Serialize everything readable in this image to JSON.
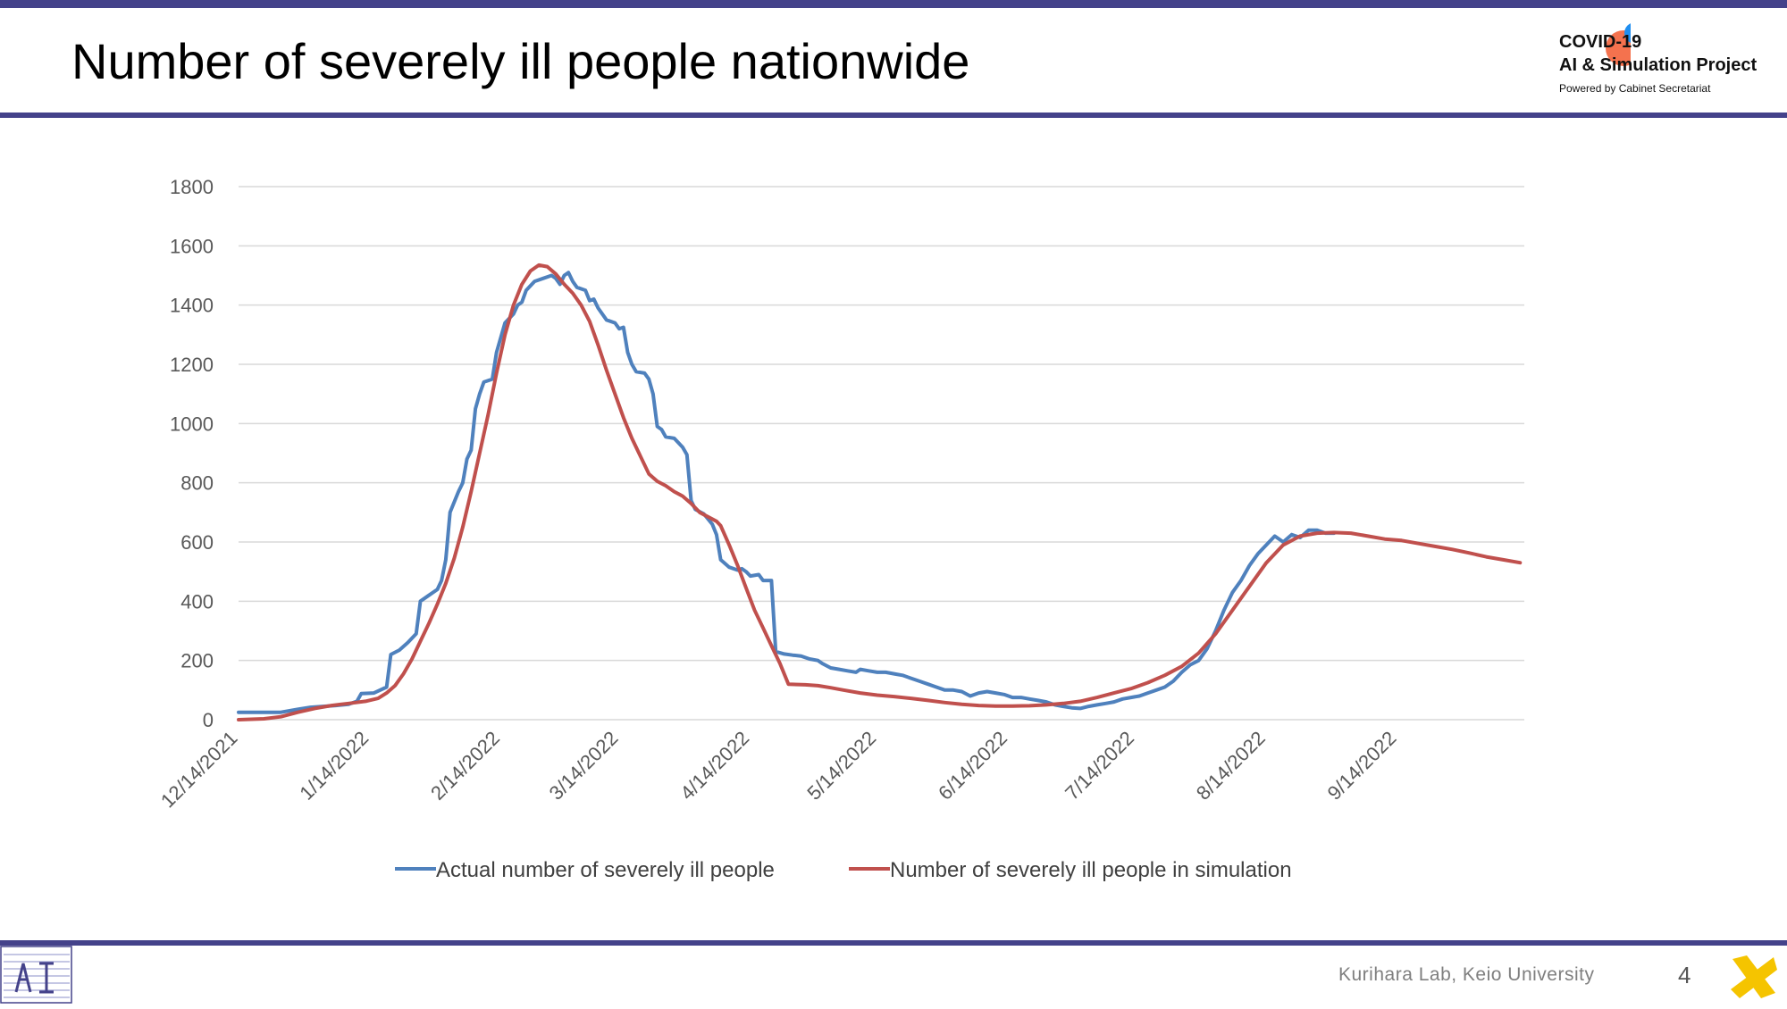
{
  "slide": {
    "title": "Number of severely ill people nationwide",
    "footer": "Kurihara Lab, Keio University",
    "page_number": "4"
  },
  "logo": {
    "line1": "COVID-19",
    "line2": "AI & Simulation Project",
    "line3": "Powered by Cabinet Secretariat",
    "colors": {
      "orange": "#f4724e",
      "blue": "#1f8ef0"
    }
  },
  "theme": {
    "accent": "#44428a",
    "actual_color": "#4f81bd",
    "sim_color": "#c0504d"
  },
  "chart_data": {
    "type": "line",
    "title": "",
    "xlabel": "",
    "ylabel": "",
    "ylim": [
      0,
      1800
    ],
    "yticks": [
      0,
      200,
      400,
      600,
      800,
      1000,
      1200,
      1400,
      1600,
      1800
    ],
    "x_start": "2021-12-14",
    "x_end": "2022-10-14",
    "xtick_labels": [
      "12/14/2021",
      "1/14/2022",
      "2/14/2022",
      "3/14/2022",
      "4/14/2022",
      "5/14/2022",
      "6/14/2022",
      "7/14/2022",
      "8/14/2022",
      "9/14/2022"
    ],
    "xtick_dates": [
      "2021-12-14",
      "2022-01-14",
      "2022-02-14",
      "2022-03-14",
      "2022-04-14",
      "2022-05-14",
      "2022-06-14",
      "2022-07-14",
      "2022-08-14",
      "2022-09-14"
    ],
    "grid": true,
    "legend_position": "bottom",
    "series": [
      {
        "name": "Actual number of severely ill people",
        "color": "#4f81bd",
        "points": [
          [
            "2021-12-14",
            25
          ],
          [
            "2021-12-24",
            25
          ],
          [
            "2021-12-28",
            35
          ],
          [
            "2021-12-31",
            42
          ],
          [
            "2022-01-03",
            45
          ],
          [
            "2022-01-06",
            48
          ],
          [
            "2022-01-09",
            52
          ],
          [
            "2022-01-11",
            62
          ],
          [
            "2022-01-12",
            88
          ],
          [
            "2022-01-15",
            90
          ],
          [
            "2022-01-18",
            110
          ],
          [
            "2022-01-19",
            220
          ],
          [
            "2022-01-21",
            235
          ],
          [
            "2022-01-23",
            260
          ],
          [
            "2022-01-25",
            290
          ],
          [
            "2022-01-26",
            400
          ],
          [
            "2022-01-28",
            420
          ],
          [
            "2022-01-30",
            440
          ],
          [
            "2022-01-31",
            470
          ],
          [
            "2022-02-01",
            540
          ],
          [
            "2022-02-02",
            700
          ],
          [
            "2022-02-04",
            770
          ],
          [
            "2022-02-05",
            800
          ],
          [
            "2022-02-06",
            880
          ],
          [
            "2022-02-07",
            910
          ],
          [
            "2022-02-08",
            1050
          ],
          [
            "2022-02-09",
            1100
          ],
          [
            "2022-02-10",
            1140
          ],
          [
            "2022-02-12",
            1150
          ],
          [
            "2022-02-13",
            1240
          ],
          [
            "2022-02-15",
            1340
          ],
          [
            "2022-02-17",
            1370
          ],
          [
            "2022-02-18",
            1400
          ],
          [
            "2022-02-19",
            1410
          ],
          [
            "2022-02-20",
            1450
          ],
          [
            "2022-02-22",
            1480
          ],
          [
            "2022-02-24",
            1490
          ],
          [
            "2022-02-26",
            1500
          ],
          [
            "2022-02-27",
            1490
          ],
          [
            "2022-02-28",
            1470
          ],
          [
            "2022-03-01",
            1500
          ],
          [
            "2022-03-02",
            1510
          ],
          [
            "2022-03-03",
            1480
          ],
          [
            "2022-03-04",
            1460
          ],
          [
            "2022-03-06",
            1450
          ],
          [
            "2022-03-07",
            1415
          ],
          [
            "2022-03-08",
            1420
          ],
          [
            "2022-03-09",
            1390
          ],
          [
            "2022-03-11",
            1350
          ],
          [
            "2022-03-13",
            1340
          ],
          [
            "2022-03-14",
            1320
          ],
          [
            "2022-03-15",
            1325
          ],
          [
            "2022-03-16",
            1240
          ],
          [
            "2022-03-17",
            1200
          ],
          [
            "2022-03-18",
            1175
          ],
          [
            "2022-03-20",
            1170
          ],
          [
            "2022-03-21",
            1150
          ],
          [
            "2022-03-22",
            1100
          ],
          [
            "2022-03-23",
            990
          ],
          [
            "2022-03-24",
            980
          ],
          [
            "2022-03-25",
            955
          ],
          [
            "2022-03-27",
            950
          ],
          [
            "2022-03-29",
            920
          ],
          [
            "2022-03-30",
            895
          ],
          [
            "2022-03-31",
            740
          ],
          [
            "2022-04-01",
            710
          ],
          [
            "2022-04-03",
            695
          ],
          [
            "2022-04-05",
            660
          ],
          [
            "2022-04-06",
            625
          ],
          [
            "2022-04-07",
            540
          ],
          [
            "2022-04-09",
            515
          ],
          [
            "2022-04-11",
            505
          ],
          [
            "2022-04-12",
            510
          ],
          [
            "2022-04-13",
            500
          ],
          [
            "2022-04-14",
            485
          ],
          [
            "2022-04-16",
            490
          ],
          [
            "2022-04-17",
            470
          ],
          [
            "2022-04-19",
            470
          ],
          [
            "2022-04-20",
            230
          ],
          [
            "2022-04-22",
            222
          ],
          [
            "2022-04-24",
            218
          ],
          [
            "2022-04-26",
            215
          ],
          [
            "2022-04-28",
            205
          ],
          [
            "2022-04-30",
            200
          ],
          [
            "2022-05-01",
            190
          ],
          [
            "2022-05-03",
            175
          ],
          [
            "2022-05-05",
            170
          ],
          [
            "2022-05-07",
            165
          ],
          [
            "2022-05-09",
            160
          ],
          [
            "2022-05-10",
            170
          ],
          [
            "2022-05-12",
            165
          ],
          [
            "2022-05-14",
            160
          ],
          [
            "2022-05-16",
            160
          ],
          [
            "2022-05-18",
            155
          ],
          [
            "2022-05-20",
            150
          ],
          [
            "2022-05-22",
            140
          ],
          [
            "2022-05-24",
            130
          ],
          [
            "2022-05-26",
            120
          ],
          [
            "2022-05-28",
            110
          ],
          [
            "2022-05-30",
            100
          ],
          [
            "2022-06-01",
            100
          ],
          [
            "2022-06-03",
            95
          ],
          [
            "2022-06-05",
            80
          ],
          [
            "2022-06-07",
            90
          ],
          [
            "2022-06-09",
            95
          ],
          [
            "2022-06-11",
            90
          ],
          [
            "2022-06-13",
            85
          ],
          [
            "2022-06-15",
            75
          ],
          [
            "2022-06-17",
            75
          ],
          [
            "2022-06-19",
            70
          ],
          [
            "2022-06-21",
            65
          ],
          [
            "2022-06-23",
            60
          ],
          [
            "2022-06-25",
            50
          ],
          [
            "2022-06-27",
            45
          ],
          [
            "2022-06-29",
            40
          ],
          [
            "2022-07-01",
            38
          ],
          [
            "2022-07-03",
            45
          ],
          [
            "2022-07-05",
            50
          ],
          [
            "2022-07-07",
            55
          ],
          [
            "2022-07-09",
            60
          ],
          [
            "2022-07-11",
            70
          ],
          [
            "2022-07-13",
            75
          ],
          [
            "2022-07-15",
            80
          ],
          [
            "2022-07-17",
            90
          ],
          [
            "2022-07-19",
            100
          ],
          [
            "2022-07-21",
            110
          ],
          [
            "2022-07-23",
            130
          ],
          [
            "2022-07-25",
            160
          ],
          [
            "2022-07-27",
            185
          ],
          [
            "2022-07-29",
            200
          ],
          [
            "2022-07-31",
            240
          ],
          [
            "2022-08-02",
            300
          ],
          [
            "2022-08-04",
            370
          ],
          [
            "2022-08-06",
            430
          ],
          [
            "2022-08-08",
            470
          ],
          [
            "2022-08-10",
            520
          ],
          [
            "2022-08-12",
            560
          ],
          [
            "2022-08-14",
            590
          ],
          [
            "2022-08-16",
            620
          ],
          [
            "2022-08-18",
            600
          ],
          [
            "2022-08-20",
            625
          ],
          [
            "2022-08-22",
            615
          ],
          [
            "2022-08-24",
            640
          ],
          [
            "2022-08-26",
            640
          ],
          [
            "2022-08-28",
            630
          ],
          [
            "2022-08-30",
            630
          ]
        ]
      },
      {
        "name": "Number of severely ill people in simulation",
        "color": "#c0504d",
        "points": [
          [
            "2021-12-14",
            0
          ],
          [
            "2021-12-20",
            3
          ],
          [
            "2021-12-24",
            10
          ],
          [
            "2021-12-28",
            25
          ],
          [
            "2022-01-01",
            38
          ],
          [
            "2022-01-05",
            48
          ],
          [
            "2022-01-09",
            55
          ],
          [
            "2022-01-13",
            62
          ],
          [
            "2022-01-16",
            72
          ],
          [
            "2022-01-18",
            90
          ],
          [
            "2022-01-20",
            115
          ],
          [
            "2022-01-22",
            155
          ],
          [
            "2022-01-24",
            205
          ],
          [
            "2022-01-26",
            265
          ],
          [
            "2022-01-28",
            325
          ],
          [
            "2022-01-30",
            390
          ],
          [
            "2022-02-01",
            460
          ],
          [
            "2022-02-03",
            545
          ],
          [
            "2022-02-05",
            650
          ],
          [
            "2022-02-07",
            770
          ],
          [
            "2022-02-09",
            900
          ],
          [
            "2022-02-11",
            1030
          ],
          [
            "2022-02-13",
            1170
          ],
          [
            "2022-02-15",
            1300
          ],
          [
            "2022-02-17",
            1400
          ],
          [
            "2022-02-19",
            1470
          ],
          [
            "2022-02-21",
            1515
          ],
          [
            "2022-02-23",
            1535
          ],
          [
            "2022-02-25",
            1530
          ],
          [
            "2022-02-27",
            1505
          ],
          [
            "2022-03-01",
            1470
          ],
          [
            "2022-03-03",
            1440
          ],
          [
            "2022-03-05",
            1400
          ],
          [
            "2022-03-07",
            1345
          ],
          [
            "2022-03-09",
            1265
          ],
          [
            "2022-03-11",
            1180
          ],
          [
            "2022-03-13",
            1100
          ],
          [
            "2022-03-15",
            1020
          ],
          [
            "2022-03-17",
            950
          ],
          [
            "2022-03-19",
            890
          ],
          [
            "2022-03-21",
            830
          ],
          [
            "2022-03-23",
            805
          ],
          [
            "2022-03-25",
            790
          ],
          [
            "2022-03-27",
            770
          ],
          [
            "2022-03-29",
            755
          ],
          [
            "2022-03-31",
            730
          ],
          [
            "2022-04-02",
            700
          ],
          [
            "2022-04-04",
            685
          ],
          [
            "2022-04-06",
            670
          ],
          [
            "2022-04-07",
            655
          ],
          [
            "2022-04-09",
            590
          ],
          [
            "2022-04-11",
            520
          ],
          [
            "2022-04-13",
            445
          ],
          [
            "2022-04-15",
            370
          ],
          [
            "2022-04-17",
            310
          ],
          [
            "2022-04-19",
            250
          ],
          [
            "2022-04-21",
            190
          ],
          [
            "2022-04-23",
            120
          ],
          [
            "2022-04-27",
            118
          ],
          [
            "2022-04-30",
            115
          ],
          [
            "2022-05-03",
            108
          ],
          [
            "2022-05-06",
            100
          ],
          [
            "2022-05-10",
            90
          ],
          [
            "2022-05-14",
            83
          ],
          [
            "2022-05-18",
            78
          ],
          [
            "2022-05-22",
            72
          ],
          [
            "2022-05-26",
            65
          ],
          [
            "2022-05-30",
            58
          ],
          [
            "2022-06-03",
            52
          ],
          [
            "2022-06-07",
            48
          ],
          [
            "2022-06-11",
            46
          ],
          [
            "2022-06-15",
            46
          ],
          [
            "2022-06-19",
            47
          ],
          [
            "2022-06-23",
            50
          ],
          [
            "2022-06-27",
            55
          ],
          [
            "2022-07-01",
            62
          ],
          [
            "2022-07-05",
            75
          ],
          [
            "2022-07-09",
            90
          ],
          [
            "2022-07-13",
            105
          ],
          [
            "2022-07-17",
            125
          ],
          [
            "2022-07-21",
            150
          ],
          [
            "2022-07-25",
            180
          ],
          [
            "2022-07-29",
            225
          ],
          [
            "2022-08-02",
            290
          ],
          [
            "2022-08-06",
            370
          ],
          [
            "2022-08-10",
            450
          ],
          [
            "2022-08-14",
            530
          ],
          [
            "2022-08-18",
            590
          ],
          [
            "2022-08-22",
            620
          ],
          [
            "2022-08-26",
            630
          ],
          [
            "2022-08-30",
            632
          ],
          [
            "2022-09-03",
            630
          ],
          [
            "2022-09-07",
            620
          ],
          [
            "2022-09-11",
            610
          ],
          [
            "2022-09-15",
            605
          ],
          [
            "2022-09-19",
            595
          ],
          [
            "2022-09-23",
            585
          ],
          [
            "2022-09-27",
            575
          ],
          [
            "2022-10-01",
            563
          ],
          [
            "2022-10-05",
            550
          ],
          [
            "2022-10-09",
            540
          ],
          [
            "2022-10-13",
            530
          ]
        ]
      }
    ]
  }
}
